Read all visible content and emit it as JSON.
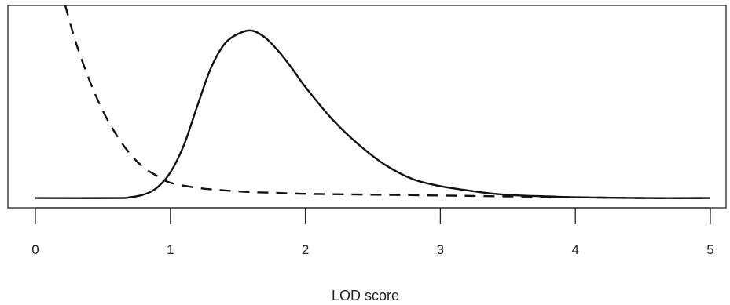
{
  "chart_data": {
    "type": "line",
    "title": "",
    "xlabel": "LOD score",
    "ylabel": "",
    "xlim": [
      -0.2,
      5.05
    ],
    "ylim": [
      0,
      1
    ],
    "x_ticks": [
      "0",
      "1",
      "2",
      "3",
      "4",
      "5"
    ],
    "y_ticks": [],
    "grid": false,
    "legend": "none",
    "series": [
      {
        "style": "solid",
        "color": "#111111",
        "x": [
          0,
          0.6,
          0.7,
          0.8,
          0.9,
          1.0,
          1.1,
          1.2,
          1.3,
          1.4,
          1.5,
          1.6,
          1.7,
          1.8,
          1.9,
          2.0,
          2.2,
          2.4,
          2.6,
          2.8,
          3.0,
          3.2,
          3.4,
          3.6,
          3.8,
          4.0,
          4.5,
          5.0
        ],
        "y": [
          0.02,
          0.02,
          0.025,
          0.04,
          0.08,
          0.17,
          0.33,
          0.56,
          0.78,
          0.92,
          0.98,
          1.0,
          0.96,
          0.88,
          0.78,
          0.67,
          0.48,
          0.33,
          0.21,
          0.13,
          0.09,
          0.065,
          0.045,
          0.035,
          0.03,
          0.025,
          0.02,
          0.02
        ]
      },
      {
        "style": "dashed",
        "color": "#111111",
        "x": [
          0.22,
          0.3,
          0.4,
          0.5,
          0.6,
          0.7,
          0.8,
          0.9,
          1.0,
          1.2,
          1.4,
          1.6,
          1.8,
          2.0,
          2.5,
          3.0,
          3.5,
          4.0,
          4.5,
          5.0
        ],
        "y": [
          1.15,
          0.93,
          0.71,
          0.53,
          0.39,
          0.28,
          0.2,
          0.15,
          0.11,
          0.08,
          0.065,
          0.055,
          0.05,
          0.045,
          0.04,
          0.035,
          0.03,
          0.025,
          0.02,
          0.02
        ]
      }
    ]
  }
}
